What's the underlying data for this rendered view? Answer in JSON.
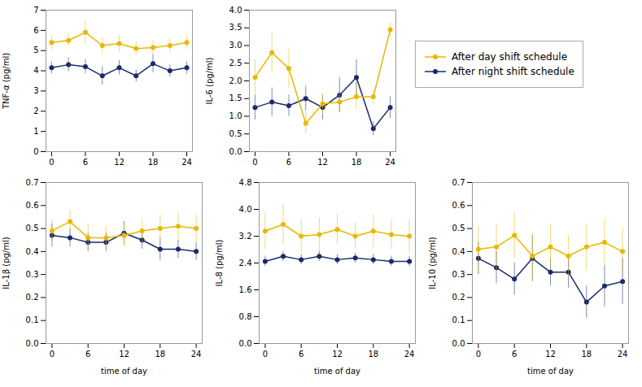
{
  "chart_data": [
    {
      "type": "line",
      "marker": "circle",
      "legend": "upper right",
      "x": [
        0,
        3,
        6,
        9,
        12,
        15,
        18,
        21,
        24
      ],
      "xlim": [
        -1,
        25
      ],
      "xticks": [
        0,
        6,
        12,
        18,
        24
      ],
      "ylabel": "TNF-α (pg/ml)",
      "ylim": [
        0,
        7
      ],
      "yticks": [
        0,
        1,
        2,
        3,
        4,
        5,
        6,
        7
      ],
      "series": [
        {
          "name": "After day shift schedule",
          "color": "#E8B800",
          "values": [
            5.4,
            5.5,
            5.9,
            5.25,
            5.35,
            5.1,
            5.15,
            5.25,
            5.4
          ],
          "errors": [
            0.35,
            0.3,
            0.6,
            0.4,
            0.4,
            0.35,
            0.35,
            0.35,
            0.35
          ]
        },
        {
          "name": "After night shift schedule",
          "color": "#1B2A6B",
          "values": [
            4.15,
            4.3,
            4.2,
            3.75,
            4.15,
            3.75,
            4.35,
            4.0,
            4.15
          ],
          "errors": [
            0.3,
            0.35,
            0.35,
            0.45,
            0.35,
            0.3,
            0.45,
            0.3,
            0.3
          ]
        }
      ]
    },
    {
      "type": "line",
      "marker": "circle",
      "x": [
        0,
        3,
        6,
        9,
        12,
        15,
        18,
        21,
        24
      ],
      "xlim": [
        -1,
        25
      ],
      "xticks": [
        0,
        6,
        12,
        18,
        24
      ],
      "ylabel": "IL-6 (pg/ml)",
      "ylim": [
        0,
        4.0
      ],
      "yticks": [
        {
          "value": 0,
          "label": "0.0"
        },
        0.5,
        {
          "value": 1,
          "label": "1.0"
        },
        1.5,
        {
          "value": 2,
          "label": "2.0"
        },
        2.5,
        {
          "value": 3,
          "label": "3.0"
        },
        3.5,
        {
          "value": 4,
          "label": "4.0"
        }
      ],
      "series": [
        {
          "name": "After day shift schedule",
          "color": "#E8B800",
          "values": [
            2.1,
            2.8,
            2.35,
            0.8,
            1.35,
            1.4,
            1.55,
            1.55,
            3.45
          ],
          "errors": [
            0.5,
            0.55,
            0.55,
            0.3,
            0.3,
            0.3,
            0.35,
            0.2,
            0.2
          ]
        },
        {
          "name": "After night shift schedule",
          "color": "#1B2A6B",
          "values": [
            1.25,
            1.4,
            1.3,
            1.5,
            1.25,
            1.6,
            2.1,
            0.65,
            1.25
          ],
          "errors": [
            0.35,
            0.4,
            0.3,
            0.35,
            0.35,
            0.5,
            0.5,
            0.2,
            0.3
          ]
        }
      ]
    },
    {
      "type": "line",
      "marker": "circle",
      "x": [
        0,
        3,
        6,
        9,
        12,
        15,
        18,
        21,
        24
      ],
      "xlabel": "time of day",
      "xlim": [
        -1,
        25
      ],
      "xticks": [
        0,
        6,
        12,
        18,
        24
      ],
      "ylabel": "IL-1β (pg/ml)",
      "ylim": [
        0,
        0.7
      ],
      "yticks": [
        {
          "value": 0,
          "label": "0.0"
        },
        0.1,
        0.2,
        0.3,
        0.4,
        0.5,
        0.6,
        0.7
      ],
      "series": [
        {
          "name": "After day shift schedule",
          "color": "#E8B800",
          "values": [
            0.49,
            0.53,
            0.46,
            0.46,
            0.47,
            0.49,
            0.5,
            0.51,
            0.5
          ],
          "errors": [
            0.05,
            0.05,
            0.06,
            0.05,
            0.05,
            0.05,
            0.06,
            0.06,
            0.06
          ]
        },
        {
          "name": "After night shift schedule",
          "color": "#1B2A6B",
          "values": [
            0.47,
            0.46,
            0.44,
            0.44,
            0.48,
            0.45,
            0.41,
            0.41,
            0.4
          ],
          "errors": [
            0.05,
            0.04,
            0.04,
            0.04,
            0.05,
            0.04,
            0.05,
            0.04,
            0.04
          ]
        }
      ]
    },
    {
      "type": "line",
      "marker": "circle",
      "x": [
        0,
        3,
        6,
        9,
        12,
        15,
        18,
        21,
        24
      ],
      "xlabel": "time of day",
      "xlim": [
        -1,
        25
      ],
      "xticks": [
        0,
        6,
        12,
        18,
        24
      ],
      "ylabel": "IL-8 (pg/ml)",
      "ylim": [
        0,
        4.8
      ],
      "yticks": [
        {
          "value": 0,
          "label": "0.0"
        },
        0.8,
        1.6,
        2.4,
        3.2,
        {
          "value": 4,
          "label": "4.0"
        },
        4.8
      ],
      "series": [
        {
          "name": "After day shift schedule",
          "color": "#E8B800",
          "values": [
            3.35,
            3.55,
            3.2,
            3.25,
            3.4,
            3.2,
            3.35,
            3.25,
            3.2
          ],
          "errors": [
            0.55,
            0.6,
            0.5,
            0.5,
            0.45,
            0.4,
            0.5,
            0.45,
            0.5
          ]
        },
        {
          "name": "After night shift schedule",
          "color": "#1B2A6B",
          "values": [
            2.45,
            2.6,
            2.5,
            2.6,
            2.5,
            2.55,
            2.5,
            2.45,
            2.45
          ],
          "errors": [
            0.15,
            0.15,
            0.15,
            0.15,
            0.15,
            0.15,
            0.15,
            0.15,
            0.15
          ]
        }
      ]
    },
    {
      "type": "line",
      "marker": "circle",
      "x": [
        0,
        3,
        6,
        9,
        12,
        15,
        18,
        21,
        24
      ],
      "xlabel": "time of day",
      "xlim": [
        -1,
        25
      ],
      "xticks": [
        0,
        6,
        12,
        18,
        24
      ],
      "ylabel": "IL-10 (pg/ml)",
      "ylim": [
        0,
        0.7
      ],
      "yticks": [
        {
          "value": 0,
          "label": "0.0"
        },
        0.1,
        0.2,
        0.3,
        0.4,
        0.5,
        0.6,
        0.7
      ],
      "series": [
        {
          "name": "After day shift schedule",
          "color": "#E8B800",
          "values": [
            0.41,
            0.42,
            0.47,
            0.38,
            0.42,
            0.38,
            0.42,
            0.44,
            0.4
          ],
          "errors": [
            0.1,
            0.1,
            0.1,
            0.1,
            0.1,
            0.09,
            0.1,
            0.1,
            0.1
          ]
        },
        {
          "name": "After night shift schedule",
          "color": "#1B2A6B",
          "values": [
            0.37,
            0.33,
            0.28,
            0.37,
            0.31,
            0.31,
            0.18,
            0.25,
            0.27
          ],
          "errors": [
            0.07,
            0.07,
            0.07,
            0.1,
            0.06,
            0.07,
            0.07,
            0.09,
            0.1
          ]
        }
      ]
    }
  ]
}
